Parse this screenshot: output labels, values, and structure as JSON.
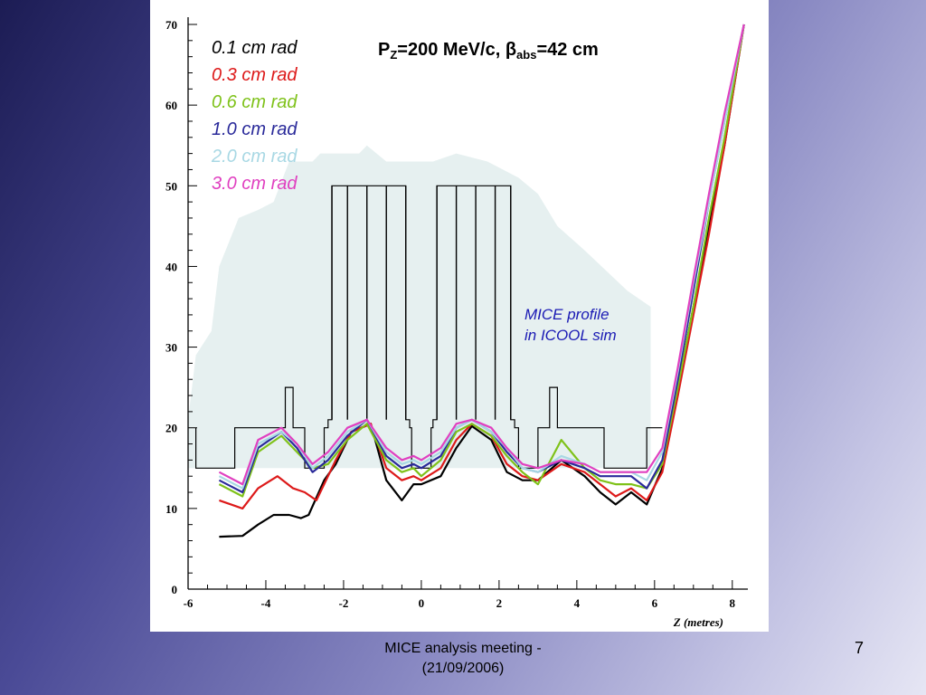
{
  "footer": {
    "line1": "MICE analysis meeting -",
    "line2": "(21/09/2006)",
    "page_number": "7"
  },
  "chart_data": {
    "type": "line",
    "title": {
      "main": "P",
      "sub_z": "Z",
      "mid": "=200 MeV/c, ",
      "beta": "β",
      "sub_abs": "abs",
      "tail": "=42 cm"
    },
    "xlabel": "Z (metres)",
    "ylabel": "",
    "xlim": [
      -6,
      8.4
    ],
    "ylim": [
      0,
      70
    ],
    "xticks": [
      -6,
      -4,
      -2,
      0,
      2,
      4,
      6,
      8
    ],
    "yticks": [
      0,
      10,
      20,
      30,
      40,
      50,
      60,
      70
    ],
    "grid": false,
    "legend_position": "top-left",
    "annotation": {
      "line1": "MICE profile",
      "line2": "in ICOOL sim"
    },
    "profile_fill_color": "#e6f0f0",
    "profile_region": [
      [
        -6,
        21
      ],
      [
        -5.8,
        29
      ],
      [
        -5.4,
        32
      ],
      [
        -5.2,
        40
      ],
      [
        -4.7,
        46
      ],
      [
        -4.2,
        47
      ],
      [
        -3.8,
        48
      ],
      [
        -3.4,
        53
      ],
      [
        -2.8,
        53
      ],
      [
        -2.6,
        54
      ],
      [
        -1.6,
        54
      ],
      [
        -1.4,
        55
      ],
      [
        -0.9,
        53
      ],
      [
        -0.3,
        53
      ],
      [
        0.3,
        53
      ],
      [
        0.9,
        54
      ],
      [
        1.7,
        53
      ],
      [
        2.5,
        51
      ],
      [
        3.0,
        49
      ],
      [
        3.5,
        45
      ],
      [
        4.2,
        42
      ],
      [
        5.3,
        37
      ],
      [
        5.9,
        35
      ],
      [
        5.9,
        15
      ],
      [
        -6,
        15
      ]
    ],
    "magnet_outline_color": "#000000",
    "magnet_outline": [
      [
        -5.8,
        20
      ],
      [
        -5.8,
        15
      ],
      [
        -4.8,
        15
      ],
      [
        -4.8,
        20
      ],
      [
        -3.5,
        20
      ],
      [
        -3.5,
        25
      ],
      [
        -3.3,
        25
      ],
      [
        -3.3,
        20
      ],
      [
        -3.0,
        20
      ],
      [
        -3.0,
        15
      ],
      [
        -2.5,
        15
      ],
      [
        -2.5,
        20
      ],
      [
        -2.4,
        20
      ],
      [
        -2.4,
        21
      ],
      [
        -2.3,
        21
      ],
      [
        -2.3,
        50
      ],
      [
        -0.4,
        50
      ],
      [
        -0.4,
        21
      ],
      [
        -0.3,
        21
      ],
      [
        -0.3,
        20
      ],
      [
        -0.25,
        20
      ],
      [
        -0.25,
        15
      ],
      [
        0.25,
        15
      ],
      [
        0.25,
        20
      ],
      [
        0.3,
        20
      ],
      [
        0.3,
        21
      ],
      [
        0.4,
        21
      ],
      [
        0.4,
        50
      ],
      [
        2.3,
        50
      ],
      [
        2.3,
        21
      ],
      [
        2.4,
        21
      ],
      [
        2.4,
        20
      ],
      [
        2.5,
        20
      ],
      [
        2.5,
        15
      ],
      [
        3.0,
        15
      ],
      [
        3.0,
        20
      ],
      [
        3.3,
        20
      ],
      [
        3.3,
        25
      ],
      [
        3.5,
        25
      ],
      [
        3.5,
        20
      ],
      [
        4.7,
        20
      ],
      [
        4.7,
        15
      ],
      [
        5.8,
        15
      ],
      [
        5.8,
        20
      ],
      [
        6.2,
        20
      ]
    ],
    "coil_dividers_x": [
      -2.3,
      -1.9,
      -1.4,
      -0.9,
      -0.4,
      0.4,
      0.9,
      1.4,
      1.9,
      2.3
    ],
    "series": [
      {
        "name": "0.1 cm rad",
        "color": "#000000",
        "x": [
          -5.2,
          -4.6,
          -4.2,
          -3.8,
          -3.4,
          -3.1,
          -2.9,
          -2.5,
          -2.2,
          -1.8,
          -1.3,
          -0.9,
          -0.5,
          -0.2,
          0,
          0.5,
          0.9,
          1.3,
          1.8,
          2.2,
          2.6,
          3.0,
          3.6,
          4.2,
          4.6,
          5.0,
          5.4,
          5.8,
          6.2,
          6.6,
          7.0,
          7.4,
          7.8,
          8.3
        ],
        "y": [
          6.5,
          6.6,
          8,
          9.2,
          9.2,
          8.8,
          9.2,
          13.5,
          15.5,
          19.5,
          20.5,
          13.5,
          11,
          13,
          13,
          14,
          17.5,
          20.2,
          18.5,
          14.5,
          13.5,
          13.5,
          16,
          14,
          12,
          10.5,
          12,
          10.5,
          15,
          25,
          35,
          45,
          55,
          70
        ]
      },
      {
        "name": "0.3 cm rad",
        "color": "#dd1a1a",
        "x": [
          -5.2,
          -4.6,
          -4.2,
          -3.7,
          -3.3,
          -3.0,
          -2.7,
          -2.2,
          -1.8,
          -1.3,
          -0.9,
          -0.5,
          -0.2,
          0,
          0.5,
          0.9,
          1.3,
          1.8,
          2.2,
          2.6,
          3.0,
          3.6,
          4.2,
          4.6,
          5.0,
          5.4,
          5.8,
          6.2,
          6.6,
          7.0,
          7.4,
          7.8,
          8.3
        ],
        "y": [
          11,
          10,
          12.5,
          14,
          12.5,
          12,
          11,
          16,
          19.5,
          20.5,
          15,
          13.5,
          14,
          13.5,
          15,
          18.5,
          20.5,
          19,
          15.5,
          14,
          13.5,
          15.5,
          14.5,
          13,
          11.5,
          12.5,
          11,
          14.5,
          24,
          34,
          44,
          55,
          70
        ]
      },
      {
        "name": "0.6 cm rad",
        "color": "#7fc21a",
        "x": [
          -5.2,
          -4.6,
          -4.2,
          -3.6,
          -3.2,
          -2.8,
          -2.4,
          -1.9,
          -1.4,
          -0.9,
          -0.5,
          -0.2,
          0,
          0.5,
          0.9,
          1.3,
          1.8,
          2.2,
          2.6,
          3.0,
          3.6,
          4.2,
          4.6,
          5.0,
          5.4,
          5.8,
          6.2,
          6.6,
          7.0,
          7.4,
          7.8,
          8.3
        ],
        "y": [
          13,
          11.5,
          17,
          19,
          17,
          15,
          15.5,
          18.5,
          20.5,
          16,
          14.5,
          15,
          14,
          16,
          19.5,
          20.5,
          19,
          16.5,
          14.5,
          13,
          18.5,
          15,
          13.5,
          13,
          13,
          12.5,
          15.5,
          25,
          35,
          46,
          56,
          70
        ]
      },
      {
        "name": "1.0 cm rad",
        "color": "#2a2a9a",
        "x": [
          -5.2,
          -4.6,
          -4.2,
          -3.6,
          -3.2,
          -2.8,
          -2.4,
          -1.9,
          -1.4,
          -0.9,
          -0.5,
          -0.2,
          0,
          0.5,
          0.9,
          1.3,
          1.8,
          2.2,
          2.6,
          3.0,
          3.6,
          4.2,
          4.6,
          5.0,
          5.4,
          5.8,
          6.2,
          6.6,
          7.0,
          7.4,
          7.8,
          8.3
        ],
        "y": [
          13.5,
          12,
          17.5,
          19.5,
          17.5,
          14.5,
          16,
          19,
          21,
          16.5,
          15,
          15.5,
          15,
          16.5,
          20,
          21,
          19.5,
          17,
          15,
          14.5,
          16,
          15,
          14,
          14,
          14,
          12.5,
          16,
          26,
          37,
          48,
          58,
          70
        ]
      },
      {
        "name": "2.0 cm rad",
        "color": "#a8d8e4",
        "x": [
          -5.2,
          -4.6,
          -4.2,
          -3.6,
          -3.2,
          -2.8,
          -2.4,
          -1.9,
          -1.4,
          -0.9,
          -0.5,
          -0.2,
          0,
          0.5,
          0.9,
          1.3,
          1.8,
          2.2,
          2.6,
          3.0,
          3.6,
          4.2,
          4.6,
          5.0,
          5.4,
          5.8,
          6.2,
          6.6,
          7.0,
          7.4,
          7.8,
          8.3
        ],
        "y": [
          14,
          12.5,
          18,
          19.5,
          18,
          15,
          16.5,
          19.5,
          21,
          17,
          15.5,
          16,
          15.5,
          17,
          20,
          21,
          19.5,
          17.5,
          15,
          14.5,
          16.5,
          15.5,
          14.5,
          14.5,
          14.5,
          13.5,
          17,
          27,
          38,
          48,
          58,
          70
        ]
      },
      {
        "name": "3.0 cm rad",
        "color": "#e040c0",
        "x": [
          -5.2,
          -4.6,
          -4.2,
          -3.6,
          -3.2,
          -2.8,
          -2.4,
          -1.9,
          -1.4,
          -0.9,
          -0.5,
          -0.2,
          0,
          0.5,
          0.9,
          1.3,
          1.8,
          2.2,
          2.6,
          3.0,
          3.6,
          4.2,
          4.6,
          5.0,
          5.4,
          5.8,
          6.2,
          6.6,
          7.0,
          7.4,
          7.8,
          8.3
        ],
        "y": [
          14.5,
          13,
          18.5,
          20,
          18,
          15.5,
          17,
          20,
          21,
          17.5,
          16,
          16.5,
          16,
          17.5,
          20.5,
          21,
          20,
          17.5,
          15.5,
          15,
          16,
          15.5,
          14.5,
          14.5,
          14.5,
          14.5,
          17.5,
          27.5,
          38.5,
          49,
          59,
          70
        ]
      }
    ]
  }
}
